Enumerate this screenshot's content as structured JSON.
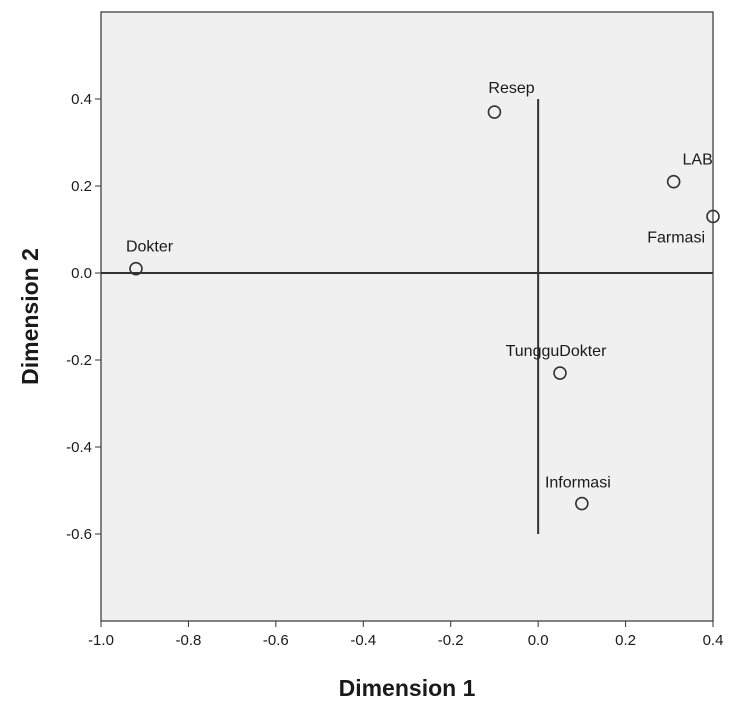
{
  "chart_data": {
    "type": "scatter",
    "xlabel": "Dimension 1",
    "ylabel": "Dimension 2",
    "xlim": [
      -1.0,
      0.4
    ],
    "ylim": [
      -0.8,
      0.6
    ],
    "xticks": [
      "-1.0",
      "-0.8",
      "-0.6",
      "-0.4",
      "-0.2",
      "0.0",
      "0.2",
      "0.4"
    ],
    "yticks": [
      "0.4",
      "0.2",
      "0.0",
      "-0.2",
      "-0.4",
      "-0.6"
    ],
    "reference_lines": {
      "horizontal": {
        "y": 0.0,
        "x_from": -1.0,
        "x_to": 0.4
      },
      "vertical": {
        "x": 0.0,
        "y_from": -0.6,
        "y_to": 0.4
      }
    },
    "grid": false,
    "legend": "none",
    "points": [
      {
        "label": "Resep",
        "x": -0.1,
        "y": 0.37
      },
      {
        "label": "LAB",
        "x": 0.31,
        "y": 0.21
      },
      {
        "label": "Farmasi",
        "x": 0.4,
        "y": 0.13
      },
      {
        "label": "Dokter",
        "x": -0.92,
        "y": 0.01
      },
      {
        "label": "TungguDokter",
        "x": 0.05,
        "y": -0.23
      },
      {
        "label": "Informasi",
        "x": 0.1,
        "y": -0.53
      }
    ],
    "colors": {
      "plot_background": "#f0f0f0",
      "frame": "#333333",
      "marker_stroke": "#333333",
      "reference_line": "#333333"
    }
  }
}
